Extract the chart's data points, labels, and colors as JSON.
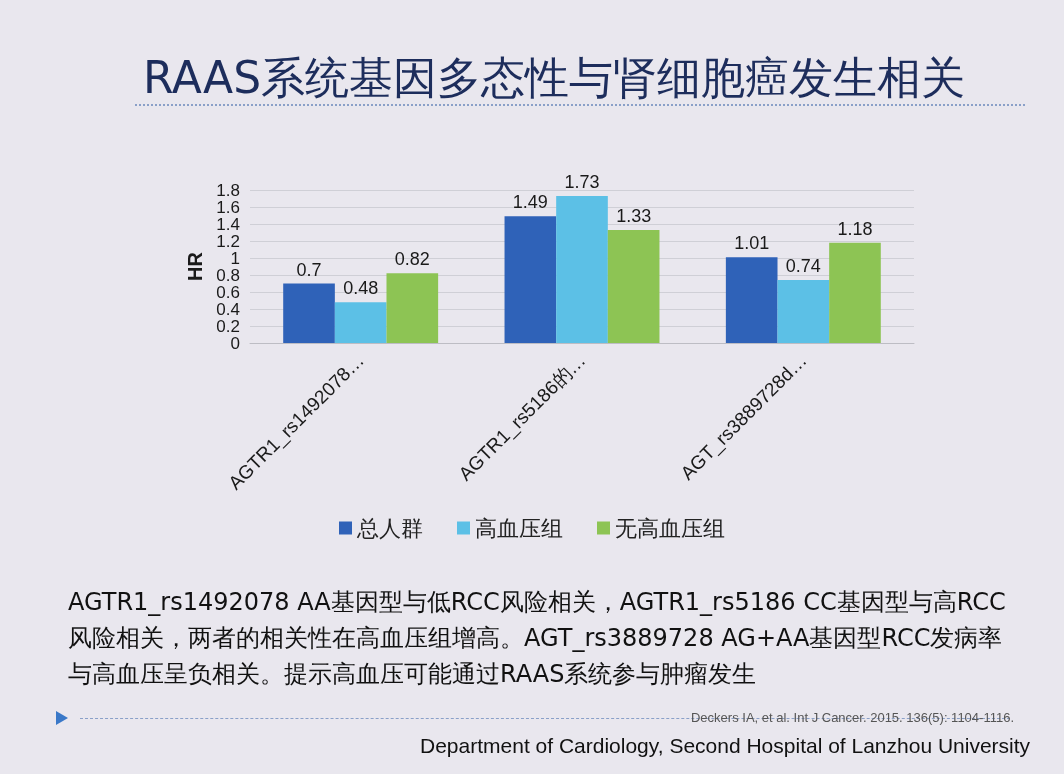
{
  "chart_data": {
    "type": "bar",
    "title": "RAAS系统基因多态性与肾细胞癌发生相关",
    "ylabel": "HR",
    "categories": [
      "AGTR1_rs1492078…",
      "AGTR1_rs5186的…",
      "AGT_rs3889728d…"
    ],
    "series": [
      {
        "name": "总人群",
        "color": "#2f62b8",
        "values": [
          0.7,
          1.49,
          1.01
        ]
      },
      {
        "name": "高血压组",
        "color": "#5cc0e6",
        "values": [
          0.48,
          1.73,
          0.74
        ]
      },
      {
        "name": "无高血压组",
        "color": "#8dc454",
        "values": [
          0.82,
          1.33,
          1.18
        ]
      }
    ],
    "ylim": [
      0,
      1.8
    ],
    "yticks": [
      0,
      0.2,
      0.4,
      0.6,
      0.8,
      1,
      1.2,
      1.4,
      1.6,
      1.8
    ],
    "grid": "y",
    "legend": "bottom",
    "data_labels": true,
    "annotations": [
      "AGTR1_rs1492078 AA基因型与低RCC风险相关，AGTR1_rs5186 CC基因型与高RCC风险相关，两者的相关性在高血压组增高。AGT_rs3889728 AG+AA基因型RCC发病率与高血压呈负相关。提示高血压可能通过RAAS系统参与肿瘤发生",
      "Deckers IA, et al. Int J Cancer. 2015. 136(5): 1104-1116.",
      "Department of Cardiology, Second Hospital of Lanzhou University"
    ]
  }
}
